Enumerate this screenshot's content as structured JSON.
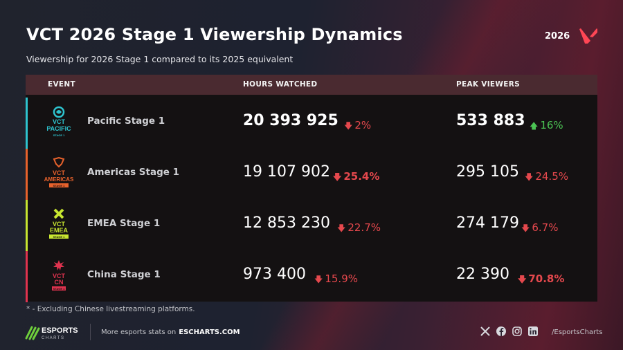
{
  "header": {
    "title": "VCT 2026 Stage 1 Viewership Dynamics",
    "subtitle": "Viewership for 2026 Stage 1 compared to its 2025 equivalent",
    "year": "2026"
  },
  "table": {
    "columns": [
      "EVENT",
      "HOURS WATCHED",
      "PEAK VIEWERS"
    ],
    "rows": [
      {
        "event": "Pacific Stage 1",
        "logo": {
          "line1": "VCT",
          "line2": "PACIFIC",
          "line3": "STAGE 1"
        },
        "hours": "20 393 925",
        "hours_change": "2%",
        "hours_dir": "down",
        "peak": "533 883",
        "peak_change": "16%",
        "peak_dir": "up",
        "accent": "#2ec4cf"
      },
      {
        "event": "Americas Stage 1",
        "logo": {
          "line1": "VCT",
          "line2": "AMERICAS",
          "line3": "STAGE 1"
        },
        "hours": "19 107 902",
        "hours_change": "25.4%",
        "hours_dir": "down",
        "peak": "295 105",
        "peak_change": "24.5%",
        "peak_dir": "down",
        "accent": "#e8622c"
      },
      {
        "event": "EMEA Stage 1",
        "logo": {
          "line1": "VCT",
          "line2": "EMEA",
          "line3": "STAGE 1"
        },
        "hours": "12 853 230",
        "hours_change": "22.7%",
        "hours_dir": "down",
        "peak": "274 179",
        "peak_change": "6.7%",
        "peak_dir": "down",
        "accent": "#c8e630"
      },
      {
        "event": "China Stage 1",
        "logo": {
          "line1": "VCT",
          "line2": "CN",
          "line3": "STAGE 1"
        },
        "hours": "973 400",
        "hours_change": "15.9%",
        "hours_dir": "down",
        "peak": "22 390",
        "peak_change": "70.8%",
        "peak_dir": "down",
        "accent": "#e0334f"
      }
    ]
  },
  "footer": {
    "note": "* - Excluding Chinese livestreaming platforms.",
    "brand_top": "ESPORTS",
    "brand_bottom": "CHARTS",
    "more_text": "More esports stats on",
    "more_link": "ESCHARTS.COM",
    "handle": "/EsportsCharts",
    "social_icons": [
      "x-icon",
      "facebook-icon",
      "instagram-icon",
      "linkedin-icon"
    ]
  },
  "colors": {
    "down": "#e5484d",
    "up": "#4cc454",
    "header_row": "#4a2a30",
    "valorant_red": "#ff4655"
  }
}
